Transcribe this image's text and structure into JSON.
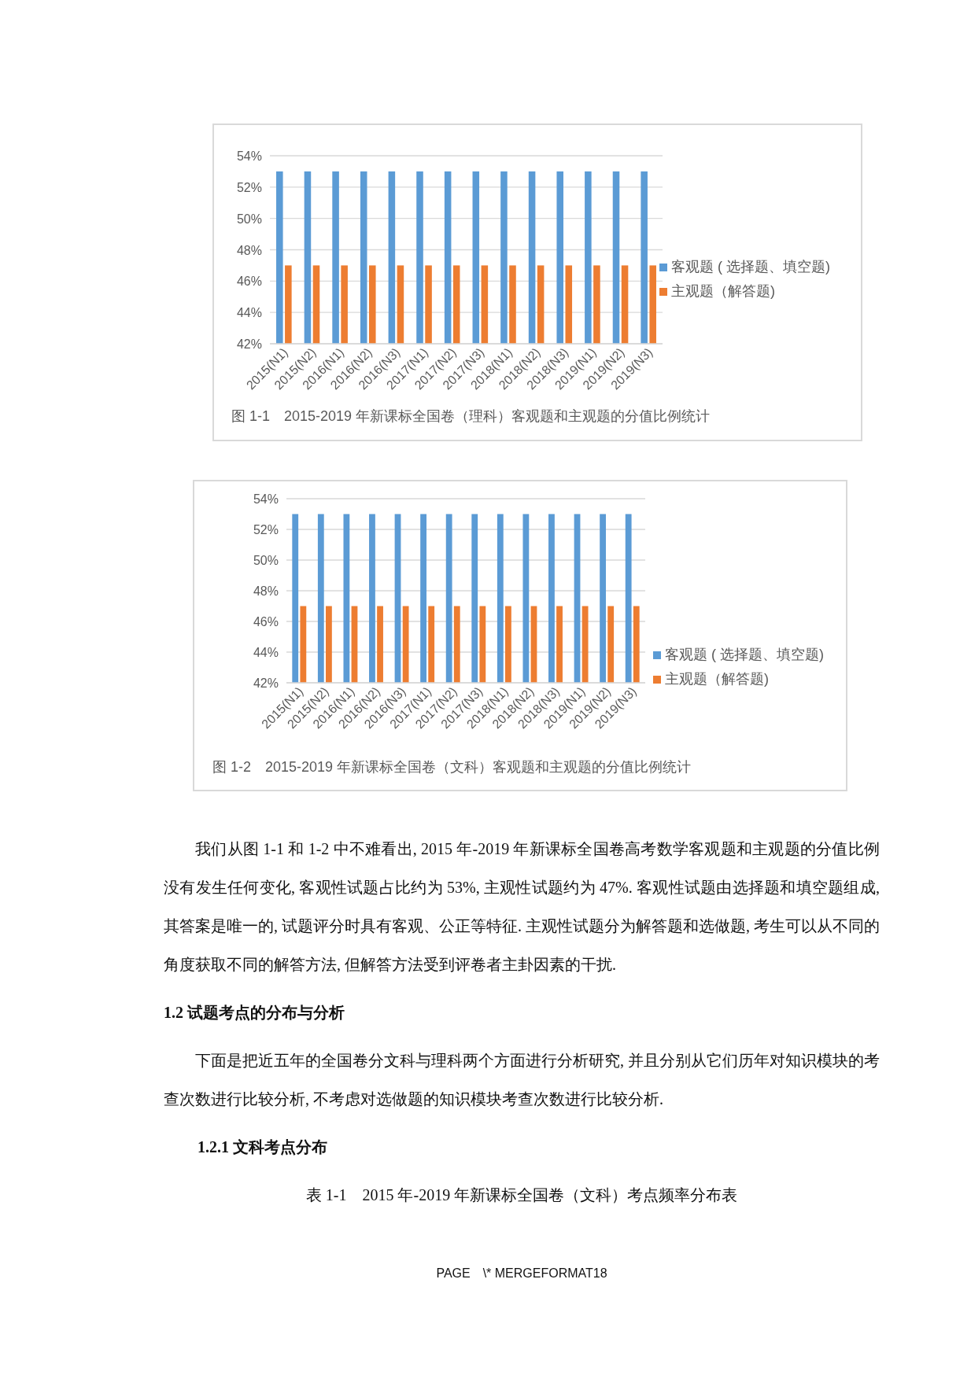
{
  "chart_data": [
    {
      "type": "bar",
      "title": "图 1-1　2015-2019 年新课标全国卷（理科）客观题和主观题的分值比例统计",
      "categories": [
        "2015(N1)",
        "2015(N2)",
        "2016(N1)",
        "2016(N2)",
        "2016(N3)",
        "2017(N1)",
        "2017(N2)",
        "2017(N3)",
        "2018(N1)",
        "2018(N2)",
        "2018(N3)",
        "2019(N1)",
        "2019(N2)",
        "2019(N3)"
      ],
      "series": [
        {
          "name": "客观题 ( 选择题、填空题)",
          "color": "#5b9bd5",
          "values": [
            53,
            53,
            53,
            53,
            53,
            53,
            53,
            53,
            53,
            53,
            53,
            53,
            53,
            53
          ]
        },
        {
          "name": "主观题（解答题)",
          "color": "#ed7d31",
          "values": [
            47,
            47,
            47,
            47,
            47,
            47,
            47,
            47,
            47,
            47,
            47,
            47,
            47,
            47
          ]
        }
      ],
      "ylim": [
        42,
        54
      ],
      "yticks": [
        {
          "value": 42,
          "label": "42%"
        },
        {
          "value": 44,
          "label": "44%"
        },
        {
          "value": 46,
          "label": "46%"
        },
        {
          "value": 48,
          "label": "48%"
        },
        {
          "value": 50,
          "label": "50%"
        },
        {
          "value": 52,
          "label": "52%"
        },
        {
          "value": 54,
          "label": "54%"
        }
      ],
      "grid": "y",
      "legend": "right"
    },
    {
      "type": "bar",
      "title": "图 1-2　2015-2019 年新课标全国卷（文科）客观题和主观题的分值比例统计",
      "categories": [
        "2015(N1)",
        "2015(N2)",
        "2016(N1)",
        "2016(N2)",
        "2016(N3)",
        "2017(N1)",
        "2017(N2)",
        "2017(N3)",
        "2018(N1)",
        "2018(N2)",
        "2018(N3)",
        "2019(N1)",
        "2019(N2)",
        "2019(N3)"
      ],
      "series": [
        {
          "name": "客观题 ( 选择题、填空题)",
          "color": "#5b9bd5",
          "values": [
            53,
            53,
            53,
            53,
            53,
            53,
            53,
            53,
            53,
            53,
            53,
            53,
            53,
            53
          ]
        },
        {
          "name": "主观题（解答题)",
          "color": "#ed7d31",
          "values": [
            47,
            47,
            47,
            47,
            47,
            47,
            47,
            47,
            47,
            47,
            47,
            47,
            47,
            47
          ]
        }
      ],
      "ylim": [
        42,
        54
      ],
      "yticks": [
        {
          "value": 42,
          "label": "42%"
        },
        {
          "value": 44,
          "label": "44%"
        },
        {
          "value": 46,
          "label": "46%"
        },
        {
          "value": 48,
          "label": "48%"
        },
        {
          "value": 50,
          "label": "50%"
        },
        {
          "value": 52,
          "label": "52%"
        },
        {
          "value": 54,
          "label": "54%"
        }
      ],
      "grid": "y",
      "legend": "right",
      "annotations": [
        "我们从图 1-1 和 1-2 中不难看出, 2015 年-2019 年新课标全国卷高考数学客观题和主观题的分值比例没有发生任何变化, 客观性试题占比约为 53%, 主观性试题约为 47%. 客观性试题由选择题和填空题组成, 其答案是唯一的, 试题评分时具有客观、公正等特征. 主观性试题分为解答题和选做题, 考生可以从不同的角度获取不同的解答方法, 但解答方法受到评卷者主卦因素的干扰.",
        "1.2 试题考点的分布与分析",
        "下面是把近五年的全国卷分文科与理科两个方面进行分析研究, 并且分别从它们历年对知识模块的考查次数进行比较分析, 不考虑对选做题的知识模块考查次数进行比较分析.",
        "1.2.1  文科考点分布",
        "表 1-1　2015 年-2019 年新课标全国卷（文科）考点频率分布表",
        "PAGE　\\* MERGEFORMAT18"
      ]
    }
  ]
}
